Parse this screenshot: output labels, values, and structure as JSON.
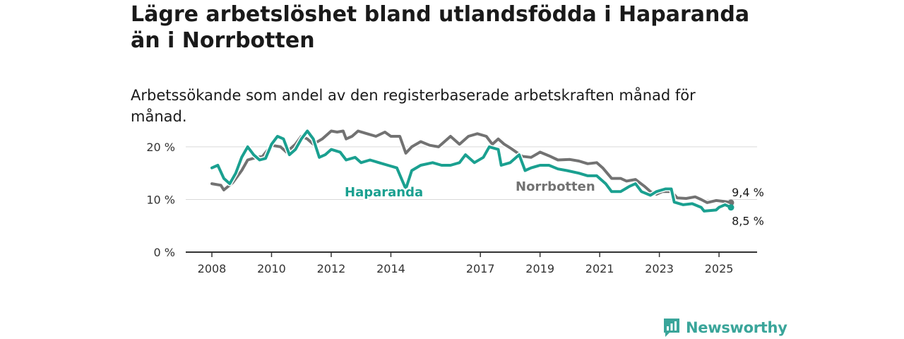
{
  "title": "Lägre arbetslöshet bland utlandsfödda i Haparanda än i Norrbotten",
  "subtitle": "Arbetssökande som andel av den registerbaserade arbetskraften månad för månad.",
  "brand": {
    "name": "Newsworthy",
    "icon": "newsworthy-logo-icon",
    "color": "#3aa59a"
  },
  "colors": {
    "haparanda": "#1aa090",
    "norrbotten": "#727272",
    "grid": "#d9d9d9",
    "axis": "#333333"
  },
  "chart_data": {
    "type": "line",
    "title": "Lägre arbetslöshet bland utlandsfödda i Haparanda än i Norrbotten",
    "subtitle": "Arbetssökande som andel av den registerbaserade arbetskraften månad för månad.",
    "xlabel": "",
    "ylabel": "",
    "x_range": [
      2008,
      2025.4
    ],
    "ylim": [
      0,
      22
    ],
    "y_ticks": [
      0,
      10,
      20
    ],
    "y_tick_labels": [
      "0 %",
      "10 %",
      "20 %"
    ],
    "x_ticks": [
      2008,
      2010,
      2012,
      2014,
      2017,
      2019,
      2021,
      2023,
      2025
    ],
    "x_tick_labels": [
      "2008",
      "2010",
      "2012",
      "2014",
      "2017",
      "2019",
      "2021",
      "2023",
      "2025"
    ],
    "grid": true,
    "legend": "direct labels on lines",
    "series": [
      {
        "name": "Norrbotten",
        "color": "#727272",
        "end_label": "9,4 %",
        "points": [
          [
            2008.0,
            13.0
          ],
          [
            2008.3,
            12.7
          ],
          [
            2008.4,
            11.8
          ],
          [
            2008.7,
            13.2
          ],
          [
            2009.0,
            15.5
          ],
          [
            2009.2,
            17.5
          ],
          [
            2009.5,
            18.0
          ],
          [
            2009.7,
            18.2
          ],
          [
            2010.0,
            20.3
          ],
          [
            2010.3,
            20.0
          ],
          [
            2010.5,
            19.0
          ],
          [
            2010.8,
            20.5
          ],
          [
            2011.0,
            22.0
          ],
          [
            2011.2,
            21.5
          ],
          [
            2011.4,
            20.5
          ],
          [
            2011.7,
            21.5
          ],
          [
            2012.0,
            23.0
          ],
          [
            2012.2,
            22.8
          ],
          [
            2012.4,
            23.0
          ],
          [
            2012.5,
            21.5
          ],
          [
            2012.7,
            22.0
          ],
          [
            2012.9,
            23.0
          ],
          [
            2013.2,
            22.5
          ],
          [
            2013.5,
            22.0
          ],
          [
            2013.8,
            22.8
          ],
          [
            2014.0,
            22.0
          ],
          [
            2014.3,
            22.0
          ],
          [
            2014.5,
            18.8
          ],
          [
            2014.7,
            20.0
          ],
          [
            2015.0,
            21.0
          ],
          [
            2015.3,
            20.3
          ],
          [
            2015.6,
            20.0
          ],
          [
            2016.0,
            22.0
          ],
          [
            2016.3,
            20.5
          ],
          [
            2016.6,
            22.0
          ],
          [
            2016.9,
            22.5
          ],
          [
            2017.2,
            22.0
          ],
          [
            2017.4,
            20.5
          ],
          [
            2017.6,
            21.5
          ],
          [
            2017.8,
            20.5
          ],
          [
            2018.0,
            19.8
          ],
          [
            2018.4,
            18.2
          ],
          [
            2018.7,
            18.0
          ],
          [
            2019.0,
            19.0
          ],
          [
            2019.3,
            18.3
          ],
          [
            2019.6,
            17.5
          ],
          [
            2020.0,
            17.6
          ],
          [
            2020.3,
            17.3
          ],
          [
            2020.6,
            16.8
          ],
          [
            2020.9,
            17.0
          ],
          [
            2021.1,
            16.0
          ],
          [
            2021.4,
            14.0
          ],
          [
            2021.7,
            14.0
          ],
          [
            2021.9,
            13.5
          ],
          [
            2022.2,
            13.8
          ],
          [
            2022.5,
            12.5
          ],
          [
            2022.7,
            11.5
          ],
          [
            2022.9,
            11.0
          ],
          [
            2023.1,
            11.5
          ],
          [
            2023.4,
            11.5
          ],
          [
            2023.6,
            10.3
          ],
          [
            2023.9,
            10.2
          ],
          [
            2024.2,
            10.5
          ],
          [
            2024.4,
            10.0
          ],
          [
            2024.6,
            9.4
          ],
          [
            2024.9,
            9.8
          ],
          [
            2025.2,
            9.6
          ],
          [
            2025.4,
            9.4
          ]
        ]
      },
      {
        "name": "Haparanda",
        "color": "#1aa090",
        "end_label": "8,5 %",
        "points": [
          [
            2008.0,
            16.0
          ],
          [
            2008.2,
            16.5
          ],
          [
            2008.4,
            14.0
          ],
          [
            2008.6,
            13.0
          ],
          [
            2008.8,
            15.0
          ],
          [
            2009.0,
            18.0
          ],
          [
            2009.2,
            20.0
          ],
          [
            2009.4,
            18.5
          ],
          [
            2009.6,
            17.5
          ],
          [
            2009.8,
            17.8
          ],
          [
            2010.0,
            20.5
          ],
          [
            2010.2,
            22.0
          ],
          [
            2010.4,
            21.5
          ],
          [
            2010.6,
            18.5
          ],
          [
            2010.8,
            19.5
          ],
          [
            2011.0,
            21.5
          ],
          [
            2011.2,
            23.0
          ],
          [
            2011.4,
            21.5
          ],
          [
            2011.6,
            18.0
          ],
          [
            2011.8,
            18.5
          ],
          [
            2012.0,
            19.5
          ],
          [
            2012.3,
            19.0
          ],
          [
            2012.5,
            17.5
          ],
          [
            2012.8,
            18.0
          ],
          [
            2013.0,
            17.0
          ],
          [
            2013.3,
            17.5
          ],
          [
            2013.6,
            17.0
          ],
          [
            2013.9,
            16.5
          ],
          [
            2014.2,
            16.0
          ],
          [
            2014.5,
            12.0
          ],
          [
            2014.7,
            15.5
          ],
          [
            2015.0,
            16.5
          ],
          [
            2015.4,
            17.0
          ],
          [
            2015.7,
            16.5
          ],
          [
            2016.0,
            16.5
          ],
          [
            2016.3,
            17.0
          ],
          [
            2016.5,
            18.5
          ],
          [
            2016.8,
            17.0
          ],
          [
            2017.1,
            18.0
          ],
          [
            2017.3,
            20.0
          ],
          [
            2017.6,
            19.5
          ],
          [
            2017.7,
            16.5
          ],
          [
            2018.0,
            17.0
          ],
          [
            2018.3,
            18.5
          ],
          [
            2018.5,
            15.5
          ],
          [
            2018.7,
            16.0
          ],
          [
            2019.0,
            16.5
          ],
          [
            2019.3,
            16.5
          ],
          [
            2019.6,
            15.8
          ],
          [
            2019.9,
            15.5
          ],
          [
            2020.3,
            15.0
          ],
          [
            2020.6,
            14.5
          ],
          [
            2020.9,
            14.5
          ],
          [
            2021.2,
            13.0
          ],
          [
            2021.4,
            11.5
          ],
          [
            2021.7,
            11.5
          ],
          [
            2022.0,
            12.5
          ],
          [
            2022.2,
            13.0
          ],
          [
            2022.4,
            11.5
          ],
          [
            2022.7,
            10.8
          ],
          [
            2022.9,
            11.5
          ],
          [
            2023.2,
            12.0
          ],
          [
            2023.4,
            12.0
          ],
          [
            2023.5,
            9.5
          ],
          [
            2023.8,
            9.0
          ],
          [
            2024.1,
            9.2
          ],
          [
            2024.4,
            8.5
          ],
          [
            2024.5,
            7.8
          ],
          [
            2024.9,
            8.0
          ],
          [
            2025.0,
            8.5
          ],
          [
            2025.2,
            9.0
          ],
          [
            2025.4,
            8.5
          ]
        ]
      }
    ]
  }
}
